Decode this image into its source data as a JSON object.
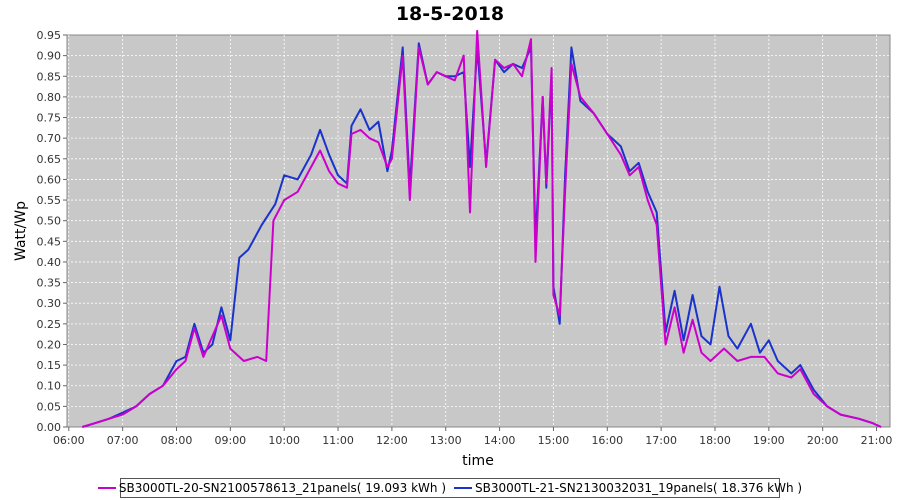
{
  "chart_data": {
    "type": "line",
    "title": "18-5-2018",
    "xlabel": "time",
    "ylabel": "Watt/Wp",
    "x_ticks": [
      "06:00",
      "07:00",
      "08:00",
      "09:00",
      "10:00",
      "11:00",
      "12:00",
      "13:00",
      "14:00",
      "15:00",
      "16:00",
      "17:00",
      "18:00",
      "19:00",
      "20:00",
      "21:00"
    ],
    "xlim": [
      "05:58",
      "21:15"
    ],
    "ylim": [
      0,
      0.95
    ],
    "y_ticks": [
      0,
      0.05,
      0.1,
      0.15,
      0.2,
      0.25,
      0.3,
      0.35,
      0.4,
      0.45,
      0.5,
      0.55,
      0.6,
      0.65,
      0.7,
      0.75,
      0.8,
      0.85,
      0.9,
      0.95
    ],
    "grid": true,
    "legend_position": "bottom",
    "series": [
      {
        "name": "SB3000TL-20-SN2100578613_21panels( 19.093 kWh )",
        "color": "#cc00cc",
        "points": [
          [
            "06:15",
            0.0
          ],
          [
            "06:30",
            0.01
          ],
          [
            "06:45",
            0.02
          ],
          [
            "07:00",
            0.03
          ],
          [
            "07:15",
            0.05
          ],
          [
            "07:30",
            0.08
          ],
          [
            "07:45",
            0.1
          ],
          [
            "08:00",
            0.14
          ],
          [
            "08:10",
            0.16
          ],
          [
            "08:20",
            0.24
          ],
          [
            "08:30",
            0.17
          ],
          [
            "08:40",
            0.22
          ],
          [
            "08:50",
            0.27
          ],
          [
            "09:00",
            0.19
          ],
          [
            "09:15",
            0.16
          ],
          [
            "09:30",
            0.17
          ],
          [
            "09:40",
            0.16
          ],
          [
            "09:48",
            0.5
          ],
          [
            "10:00",
            0.55
          ],
          [
            "10:15",
            0.57
          ],
          [
            "10:30",
            0.63
          ],
          [
            "10:40",
            0.67
          ],
          [
            "10:50",
            0.62
          ],
          [
            "11:00",
            0.59
          ],
          [
            "11:10",
            0.58
          ],
          [
            "11:15",
            0.71
          ],
          [
            "11:25",
            0.72
          ],
          [
            "11:35",
            0.7
          ],
          [
            "11:45",
            0.69
          ],
          [
            "11:55",
            0.63
          ],
          [
            "12:00",
            0.65
          ],
          [
            "12:12",
            0.9
          ],
          [
            "12:20",
            0.55
          ],
          [
            "12:30",
            0.92
          ],
          [
            "12:40",
            0.83
          ],
          [
            "12:50",
            0.86
          ],
          [
            "13:00",
            0.85
          ],
          [
            "13:10",
            0.84
          ],
          [
            "13:20",
            0.9
          ],
          [
            "13:27",
            0.52
          ],
          [
            "13:35",
            0.96
          ],
          [
            "13:45",
            0.63
          ],
          [
            "13:55",
            0.89
          ],
          [
            "14:05",
            0.87
          ],
          [
            "14:15",
            0.88
          ],
          [
            "14:25",
            0.85
          ],
          [
            "14:35",
            0.94
          ],
          [
            "14:40",
            0.4
          ],
          [
            "14:48",
            0.8
          ],
          [
            "14:52",
            0.59
          ],
          [
            "14:58",
            0.87
          ],
          [
            "15:00",
            0.32
          ],
          [
            "15:07",
            0.27
          ],
          [
            "15:13",
            0.57
          ],
          [
            "15:20",
            0.88
          ],
          [
            "15:30",
            0.8
          ],
          [
            "15:45",
            0.76
          ],
          [
            "16:00",
            0.71
          ],
          [
            "16:15",
            0.66
          ],
          [
            "16:25",
            0.61
          ],
          [
            "16:35",
            0.63
          ],
          [
            "16:45",
            0.55
          ],
          [
            "16:55",
            0.49
          ],
          [
            "17:05",
            0.2
          ],
          [
            "17:15",
            0.29
          ],
          [
            "17:25",
            0.18
          ],
          [
            "17:35",
            0.26
          ],
          [
            "17:45",
            0.18
          ],
          [
            "17:55",
            0.16
          ],
          [
            "18:10",
            0.19
          ],
          [
            "18:25",
            0.16
          ],
          [
            "18:40",
            0.17
          ],
          [
            "18:55",
            0.17
          ],
          [
            "19:10",
            0.13
          ],
          [
            "19:25",
            0.12
          ],
          [
            "19:35",
            0.14
          ],
          [
            "19:50",
            0.08
          ],
          [
            "20:05",
            0.05
          ],
          [
            "20:20",
            0.03
          ],
          [
            "20:40",
            0.02
          ],
          [
            "20:55",
            0.01
          ],
          [
            "21:05",
            0.0
          ]
        ]
      },
      {
        "name": "SB3000TL-21-SN2130032031_19panels( 18.376 kWh )",
        "color": "#1a33cc",
        "points": [
          [
            "06:15",
            0.0
          ],
          [
            "06:30",
            0.01
          ],
          [
            "06:45",
            0.02
          ],
          [
            "07:00",
            0.035
          ],
          [
            "07:15",
            0.05
          ],
          [
            "07:30",
            0.08
          ],
          [
            "07:45",
            0.1
          ],
          [
            "08:00",
            0.16
          ],
          [
            "08:10",
            0.17
          ],
          [
            "08:20",
            0.25
          ],
          [
            "08:30",
            0.18
          ],
          [
            "08:40",
            0.2
          ],
          [
            "08:50",
            0.29
          ],
          [
            "09:00",
            0.21
          ],
          [
            "09:10",
            0.41
          ],
          [
            "09:20",
            0.43
          ],
          [
            "09:35",
            0.49
          ],
          [
            "09:50",
            0.54
          ],
          [
            "10:00",
            0.61
          ],
          [
            "10:15",
            0.6
          ],
          [
            "10:30",
            0.66
          ],
          [
            "10:40",
            0.72
          ],
          [
            "10:50",
            0.66
          ],
          [
            "11:00",
            0.61
          ],
          [
            "11:10",
            0.59
          ],
          [
            "11:15",
            0.73
          ],
          [
            "11:25",
            0.77
          ],
          [
            "11:35",
            0.72
          ],
          [
            "11:45",
            0.74
          ],
          [
            "11:55",
            0.62
          ],
          [
            "12:00",
            0.67
          ],
          [
            "12:12",
            0.92
          ],
          [
            "12:20",
            0.58
          ],
          [
            "12:30",
            0.93
          ],
          [
            "12:40",
            0.83
          ],
          [
            "12:50",
            0.86
          ],
          [
            "13:00",
            0.85
          ],
          [
            "13:10",
            0.85
          ],
          [
            "13:20",
            0.86
          ],
          [
            "13:27",
            0.63
          ],
          [
            "13:35",
            0.92
          ],
          [
            "13:45",
            0.64
          ],
          [
            "13:55",
            0.89
          ],
          [
            "14:05",
            0.86
          ],
          [
            "14:15",
            0.88
          ],
          [
            "14:25",
            0.87
          ],
          [
            "14:35",
            0.92
          ],
          [
            "14:40",
            0.45
          ],
          [
            "14:48",
            0.8
          ],
          [
            "14:52",
            0.58
          ],
          [
            "14:58",
            0.85
          ],
          [
            "15:00",
            0.34
          ],
          [
            "15:07",
            0.25
          ],
          [
            "15:13",
            0.61
          ],
          [
            "15:20",
            0.92
          ],
          [
            "15:30",
            0.79
          ],
          [
            "15:45",
            0.76
          ],
          [
            "16:00",
            0.71
          ],
          [
            "16:15",
            0.68
          ],
          [
            "16:25",
            0.62
          ],
          [
            "16:35",
            0.64
          ],
          [
            "16:45",
            0.57
          ],
          [
            "16:55",
            0.52
          ],
          [
            "17:05",
            0.23
          ],
          [
            "17:15",
            0.33
          ],
          [
            "17:25",
            0.21
          ],
          [
            "17:35",
            0.32
          ],
          [
            "17:45",
            0.22
          ],
          [
            "17:55",
            0.2
          ],
          [
            "18:05",
            0.34
          ],
          [
            "18:15",
            0.22
          ],
          [
            "18:25",
            0.19
          ],
          [
            "18:40",
            0.25
          ],
          [
            "18:50",
            0.18
          ],
          [
            "19:00",
            0.21
          ],
          [
            "19:10",
            0.16
          ],
          [
            "19:25",
            0.13
          ],
          [
            "19:35",
            0.15
          ],
          [
            "19:50",
            0.09
          ],
          [
            "20:05",
            0.05
          ],
          [
            "20:20",
            0.03
          ],
          [
            "20:40",
            0.02
          ],
          [
            "20:55",
            0.01
          ],
          [
            "21:05",
            0.0
          ]
        ]
      }
    ]
  }
}
